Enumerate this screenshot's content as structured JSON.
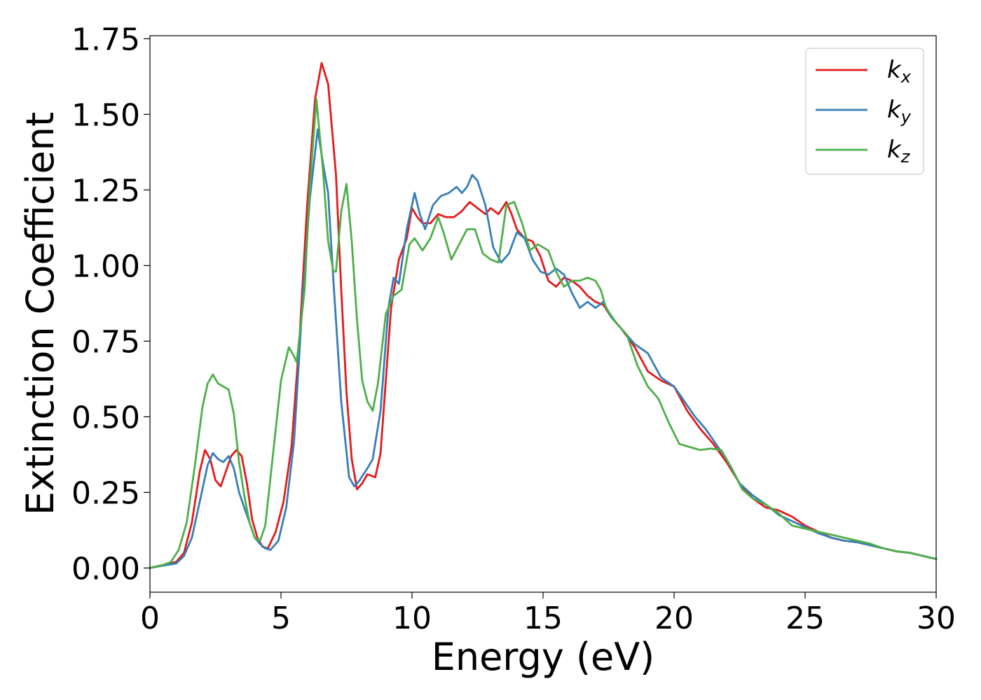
{
  "chart_data": {
    "type": "line",
    "xlabel": "Energy (eV)",
    "ylabel": "Extinction Coefficient",
    "xlim": [
      0,
      30
    ],
    "ylim": [
      -0.08,
      1.76
    ],
    "x_ticks": [
      "0",
      "5",
      "10",
      "15",
      "20",
      "25",
      "30"
    ],
    "y_ticks": [
      "0.00",
      "0.25",
      "0.50",
      "0.75",
      "1.00",
      "1.25",
      "1.50",
      "1.75"
    ],
    "grid": false,
    "legend_position": "top-right",
    "series": [
      {
        "name": "k",
        "subscript": "x",
        "color": "#e41a1c",
        "points": [
          [
            0,
            0
          ],
          [
            0.5,
            0.01
          ],
          [
            1.0,
            0.02
          ],
          [
            1.3,
            0.05
          ],
          [
            1.6,
            0.15
          ],
          [
            1.9,
            0.32
          ],
          [
            2.1,
            0.39
          ],
          [
            2.3,
            0.36
          ],
          [
            2.5,
            0.29
          ],
          [
            2.7,
            0.27
          ],
          [
            2.9,
            0.32
          ],
          [
            3.1,
            0.37
          ],
          [
            3.3,
            0.39
          ],
          [
            3.5,
            0.37
          ],
          [
            3.7,
            0.28
          ],
          [
            3.9,
            0.16
          ],
          [
            4.1,
            0.1
          ],
          [
            4.3,
            0.07
          ],
          [
            4.5,
            0.065
          ],
          [
            4.8,
            0.12
          ],
          [
            5.1,
            0.22
          ],
          [
            5.4,
            0.4
          ],
          [
            5.7,
            0.75
          ],
          [
            6.0,
            1.2
          ],
          [
            6.3,
            1.55
          ],
          [
            6.55,
            1.67
          ],
          [
            6.8,
            1.6
          ],
          [
            7.1,
            1.3
          ],
          [
            7.3,
            0.92
          ],
          [
            7.5,
            0.58
          ],
          [
            7.7,
            0.36
          ],
          [
            7.9,
            0.26
          ],
          [
            8.1,
            0.28
          ],
          [
            8.3,
            0.31
          ],
          [
            8.6,
            0.3
          ],
          [
            8.8,
            0.38
          ],
          [
            9.0,
            0.62
          ],
          [
            9.2,
            0.86
          ],
          [
            9.5,
            1.02
          ],
          [
            9.8,
            1.09
          ],
          [
            10.0,
            1.19
          ],
          [
            10.2,
            1.16
          ],
          [
            10.4,
            1.14
          ],
          [
            10.7,
            1.14
          ],
          [
            11.0,
            1.17
          ],
          [
            11.3,
            1.16
          ],
          [
            11.6,
            1.16
          ],
          [
            11.9,
            1.18
          ],
          [
            12.2,
            1.21
          ],
          [
            12.5,
            1.19
          ],
          [
            12.8,
            1.17
          ],
          [
            13.0,
            1.19
          ],
          [
            13.3,
            1.17
          ],
          [
            13.6,
            1.21
          ],
          [
            13.8,
            1.17
          ],
          [
            14.0,
            1.12
          ],
          [
            14.3,
            1.09
          ],
          [
            14.6,
            1.08
          ],
          [
            14.9,
            1.03
          ],
          [
            15.2,
            0.95
          ],
          [
            15.5,
            0.93
          ],
          [
            15.8,
            0.96
          ],
          [
            16.1,
            0.95
          ],
          [
            16.4,
            0.93
          ],
          [
            16.7,
            0.9
          ],
          [
            17.0,
            0.88
          ],
          [
            17.3,
            0.87
          ],
          [
            17.6,
            0.83
          ],
          [
            18.0,
            0.79
          ],
          [
            18.5,
            0.73
          ],
          [
            19.0,
            0.65
          ],
          [
            19.5,
            0.62
          ],
          [
            20.0,
            0.6
          ],
          [
            20.5,
            0.52
          ],
          [
            21.0,
            0.46
          ],
          [
            21.5,
            0.41
          ],
          [
            22.0,
            0.35
          ],
          [
            22.5,
            0.28
          ],
          [
            23.0,
            0.23
          ],
          [
            23.5,
            0.2
          ],
          [
            24.0,
            0.19
          ],
          [
            24.5,
            0.17
          ],
          [
            25.0,
            0.14
          ],
          [
            25.5,
            0.12
          ],
          [
            26.0,
            0.1
          ],
          [
            26.5,
            0.09
          ],
          [
            27.0,
            0.085
          ],
          [
            27.5,
            0.075
          ],
          [
            28.0,
            0.065
          ],
          [
            28.5,
            0.055
          ],
          [
            29.0,
            0.05
          ],
          [
            29.5,
            0.04
          ],
          [
            30.0,
            0.03
          ]
        ]
      },
      {
        "name": "k",
        "subscript": "y",
        "color": "#377eb8",
        "points": [
          [
            0,
            0
          ],
          [
            0.5,
            0.008
          ],
          [
            1.0,
            0.015
          ],
          [
            1.3,
            0.04
          ],
          [
            1.6,
            0.1
          ],
          [
            1.9,
            0.22
          ],
          [
            2.2,
            0.34
          ],
          [
            2.4,
            0.38
          ],
          [
            2.6,
            0.36
          ],
          [
            2.8,
            0.35
          ],
          [
            3.0,
            0.37
          ],
          [
            3.2,
            0.33
          ],
          [
            3.4,
            0.25
          ],
          [
            3.6,
            0.2
          ],
          [
            3.8,
            0.15
          ],
          [
            4.0,
            0.1
          ],
          [
            4.2,
            0.08
          ],
          [
            4.4,
            0.065
          ],
          [
            4.6,
            0.06
          ],
          [
            4.9,
            0.09
          ],
          [
            5.2,
            0.2
          ],
          [
            5.5,
            0.42
          ],
          [
            5.8,
            0.85
          ],
          [
            6.1,
            1.22
          ],
          [
            6.4,
            1.45
          ],
          [
            6.6,
            1.34
          ],
          [
            6.8,
            1.24
          ],
          [
            7.0,
            0.95
          ],
          [
            7.3,
            0.55
          ],
          [
            7.6,
            0.3
          ],
          [
            7.8,
            0.27
          ],
          [
            8.0,
            0.29
          ],
          [
            8.3,
            0.33
          ],
          [
            8.5,
            0.36
          ],
          [
            8.8,
            0.52
          ],
          [
            9.1,
            0.86
          ],
          [
            9.3,
            0.96
          ],
          [
            9.5,
            0.94
          ],
          [
            9.8,
            1.12
          ],
          [
            10.1,
            1.24
          ],
          [
            10.3,
            1.17
          ],
          [
            10.5,
            1.12
          ],
          [
            10.8,
            1.2
          ],
          [
            11.1,
            1.23
          ],
          [
            11.4,
            1.24
          ],
          [
            11.7,
            1.26
          ],
          [
            11.9,
            1.24
          ],
          [
            12.1,
            1.26
          ],
          [
            12.3,
            1.3
          ],
          [
            12.5,
            1.28
          ],
          [
            12.8,
            1.2
          ],
          [
            13.1,
            1.06
          ],
          [
            13.4,
            1.01
          ],
          [
            13.7,
            1.04
          ],
          [
            14.0,
            1.11
          ],
          [
            14.3,
            1.09
          ],
          [
            14.6,
            1.02
          ],
          [
            14.9,
            0.98
          ],
          [
            15.2,
            0.97
          ],
          [
            15.5,
            0.99
          ],
          [
            15.8,
            0.97
          ],
          [
            16.1,
            0.91
          ],
          [
            16.4,
            0.86
          ],
          [
            16.7,
            0.88
          ],
          [
            17.0,
            0.86
          ],
          [
            17.3,
            0.88
          ],
          [
            17.6,
            0.83
          ],
          [
            18.0,
            0.79
          ],
          [
            18.5,
            0.74
          ],
          [
            19.0,
            0.71
          ],
          [
            19.5,
            0.63
          ],
          [
            20.0,
            0.6
          ],
          [
            20.4,
            0.55
          ],
          [
            20.8,
            0.5
          ],
          [
            21.2,
            0.46
          ],
          [
            21.6,
            0.41
          ],
          [
            22.0,
            0.36
          ],
          [
            22.5,
            0.28
          ],
          [
            23.0,
            0.24
          ],
          [
            23.5,
            0.21
          ],
          [
            24.0,
            0.175
          ],
          [
            24.5,
            0.155
          ],
          [
            25.0,
            0.135
          ],
          [
            25.5,
            0.115
          ],
          [
            26.0,
            0.1
          ],
          [
            26.5,
            0.09
          ],
          [
            27.0,
            0.085
          ],
          [
            27.5,
            0.075
          ],
          [
            28.0,
            0.065
          ],
          [
            28.5,
            0.055
          ],
          [
            29.0,
            0.05
          ],
          [
            29.5,
            0.04
          ],
          [
            30.0,
            0.03
          ]
        ]
      },
      {
        "name": "k",
        "subscript": "z",
        "color": "#4daf4a",
        "points": [
          [
            0,
            0
          ],
          [
            0.5,
            0.01
          ],
          [
            0.8,
            0.02
          ],
          [
            1.1,
            0.06
          ],
          [
            1.4,
            0.15
          ],
          [
            1.7,
            0.33
          ],
          [
            2.0,
            0.53
          ],
          [
            2.2,
            0.61
          ],
          [
            2.4,
            0.64
          ],
          [
            2.6,
            0.61
          ],
          [
            2.8,
            0.6
          ],
          [
            3.0,
            0.59
          ],
          [
            3.2,
            0.51
          ],
          [
            3.4,
            0.35
          ],
          [
            3.6,
            0.24
          ],
          [
            3.8,
            0.15
          ],
          [
            4.0,
            0.1
          ],
          [
            4.2,
            0.09
          ],
          [
            4.4,
            0.14
          ],
          [
            4.7,
            0.38
          ],
          [
            5.0,
            0.62
          ],
          [
            5.3,
            0.73
          ],
          [
            5.5,
            0.7
          ],
          [
            5.6,
            0.68
          ],
          [
            5.9,
            0.92
          ],
          [
            6.1,
            1.26
          ],
          [
            6.35,
            1.55
          ],
          [
            6.6,
            1.32
          ],
          [
            6.8,
            1.08
          ],
          [
            7.0,
            0.98
          ],
          [
            7.1,
            0.98
          ],
          [
            7.3,
            1.18
          ],
          [
            7.5,
            1.27
          ],
          [
            7.7,
            1.08
          ],
          [
            7.9,
            0.82
          ],
          [
            8.1,
            0.62
          ],
          [
            8.3,
            0.55
          ],
          [
            8.5,
            0.52
          ],
          [
            8.7,
            0.61
          ],
          [
            9.0,
            0.84
          ],
          [
            9.3,
            0.9
          ],
          [
            9.6,
            0.92
          ],
          [
            9.9,
            1.07
          ],
          [
            10.1,
            1.09
          ],
          [
            10.4,
            1.05
          ],
          [
            10.7,
            1.09
          ],
          [
            11.0,
            1.16
          ],
          [
            11.2,
            1.11
          ],
          [
            11.5,
            1.02
          ],
          [
            11.8,
            1.07
          ],
          [
            12.1,
            1.12
          ],
          [
            12.4,
            1.12
          ],
          [
            12.7,
            1.04
          ],
          [
            13.0,
            1.02
          ],
          [
            13.3,
            1.01
          ],
          [
            13.6,
            1.2
          ],
          [
            13.9,
            1.21
          ],
          [
            14.2,
            1.14
          ],
          [
            14.5,
            1.05
          ],
          [
            14.8,
            1.07
          ],
          [
            15.2,
            1.05
          ],
          [
            15.5,
            0.98
          ],
          [
            15.8,
            0.93
          ],
          [
            16.1,
            0.95
          ],
          [
            16.4,
            0.95
          ],
          [
            16.7,
            0.96
          ],
          [
            17.0,
            0.95
          ],
          [
            17.2,
            0.92
          ],
          [
            17.4,
            0.86
          ],
          [
            17.8,
            0.81
          ],
          [
            18.2,
            0.77
          ],
          [
            18.6,
            0.67
          ],
          [
            19.0,
            0.6
          ],
          [
            19.4,
            0.56
          ],
          [
            19.8,
            0.48
          ],
          [
            20.2,
            0.41
          ],
          [
            20.6,
            0.4
          ],
          [
            21.0,
            0.39
          ],
          [
            21.4,
            0.395
          ],
          [
            21.8,
            0.39
          ],
          [
            22.2,
            0.33
          ],
          [
            22.6,
            0.26
          ],
          [
            23.0,
            0.23
          ],
          [
            23.5,
            0.21
          ],
          [
            24.0,
            0.18
          ],
          [
            24.5,
            0.14
          ],
          [
            25.0,
            0.13
          ],
          [
            25.5,
            0.12
          ],
          [
            26.0,
            0.11
          ],
          [
            26.5,
            0.1
          ],
          [
            27.0,
            0.09
          ],
          [
            27.5,
            0.08
          ],
          [
            28.0,
            0.065
          ],
          [
            28.5,
            0.055
          ],
          [
            29.0,
            0.05
          ],
          [
            29.5,
            0.04
          ],
          [
            30.0,
            0.03
          ]
        ]
      }
    ]
  }
}
